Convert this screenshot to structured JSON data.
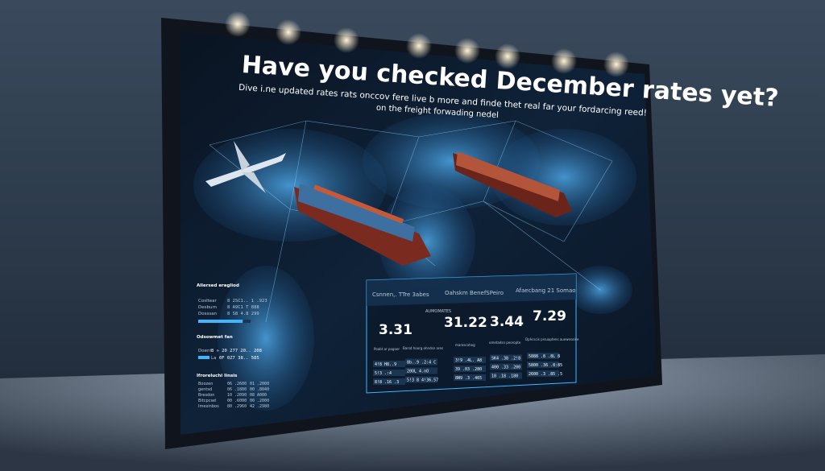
{
  "billboard": {
    "headline": "Have you checked December rates yet?",
    "subline_1": "Dive i.ne updated rates rats onccov fere live b more and finde thet real far your fordarcing reed!",
    "subline_2": "on the freight forwading nedel"
  },
  "left_panel": {
    "title_1": "Allersed eragliod",
    "rows_1": [
      {
        "label": "Cosltear",
        "value": "8 2SC1.. 1 .923"
      },
      {
        "label": "Desburn",
        "value": "8 A9C1 T 888"
      },
      {
        "label": "Dosssan",
        "value": "8 S8 4.8 299"
      }
    ],
    "progress_1": 0.85,
    "title_2": "Odsowmet fan",
    "rows_2": [
      {
        "label": "Doent",
        "value": "8 » 20 277 20.. 208"
      },
      {
        "label": "La",
        "value": "0F 0Z7 38.. 585"
      }
    ],
    "title_3": "Ifroreluchi Iinsis",
    "rows_3": [
      {
        "label": "Boozen",
        "a": "06 .2600",
        "b": "01 .2000"
      },
      {
        "label": "gentsd",
        "a": "06 .1800",
        "b": "00 .8040"
      },
      {
        "label": "Bresdon",
        "a": "10 .2090",
        "b": "08 A000"
      },
      {
        "label": "Bitcpcsel",
        "a": "00 .6000",
        "b": "00 .2000"
      },
      {
        "label": "Imexinbos",
        "a": "80 .2960",
        "b": "42 .2980"
      }
    ]
  },
  "rates_panel": {
    "tabs": [
      "Csnnen,. TTre 3abes",
      "Oahskm BenefSPeiro",
      "Afaecbang 21 Somao"
    ],
    "section_label": "AUMOMATES",
    "values": [
      "3.31",
      "31.22",
      "3.44",
      "7.29"
    ],
    "column_labels": [
      "Poabt ar pogoer",
      "Barsd hoorg ohndsn ares",
      "maroscohog",
      "ometadsn peoropte",
      "Dphcscis prsuaptens aueweseive"
    ],
    "cells": [
      [
        "4!8 H8..9",
        "8b..9 .2:4 C",
        "3!9 .4L. A8",
        "SK4 .38 .2!8",
        "5888 .8 .8L 8"
      ],
      [
        "5!3 .:4",
        "20OL 4.nO",
        "39 .03 .280",
        "400 .33 .200",
        "5800 .36 .8:85"
      ],
      [
        "8!8 .16 .3",
        "5!3 8 4!36.57",
        "8N9 .3 .465",
        "10 .18 .180",
        "2600 .3 .85 .5"
      ]
    ]
  },
  "colors": {
    "accent": "#3fb6ff",
    "glow": "#8fd3ff",
    "panel": "#0d1826",
    "frame": "#10151d"
  }
}
